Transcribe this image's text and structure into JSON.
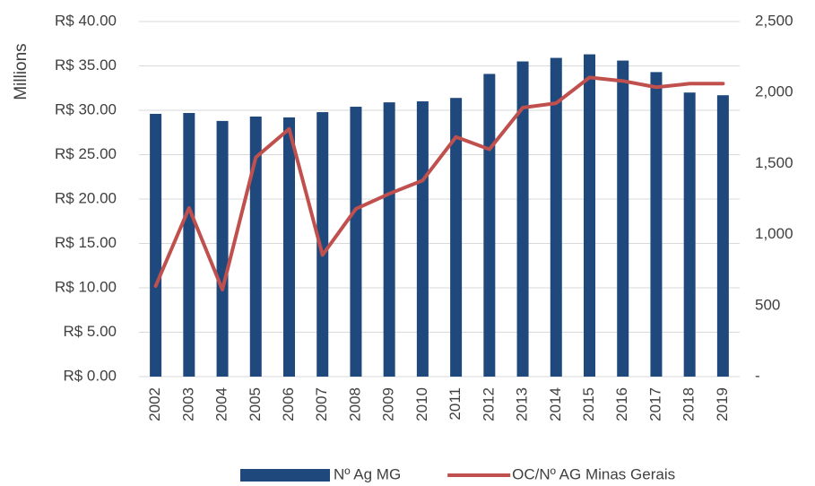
{
  "chart_data": {
    "type": "bar_line",
    "y_label": "Millions",
    "categories": [
      "2002",
      "2003",
      "2004",
      "2005",
      "2006",
      "2007",
      "2008",
      "2009",
      "2010",
      "2011",
      "2012",
      "2013",
      "2014",
      "2015",
      "2016",
      "2017",
      "2018",
      "2019"
    ],
    "series": [
      {
        "name": "Nº Ag MG",
        "type": "bar",
        "axis": "y2",
        "color": "#1f497d",
        "values": [
          1850,
          1856,
          1800,
          1831,
          1825,
          1862,
          1900,
          1931,
          1938,
          1962,
          2131,
          2219,
          2244,
          2269,
          2225,
          2144,
          2000,
          1981
        ]
      },
      {
        "name": "OC/Nº AG Minas Gerais",
        "type": "line",
        "axis": "y",
        "color": "#c0504d",
        "values": [
          10.2,
          19.0,
          9.8,
          24.7,
          27.9,
          13.7,
          18.9,
          20.6,
          22.1,
          27.0,
          25.6,
          30.3,
          30.8,
          33.7,
          33.3,
          32.6,
          33.0,
          33.0
        ]
      }
    ],
    "ylim": [
      0,
      40
    ],
    "yticks": [
      {
        "value": 0,
        "label": "R$ 0.00"
      },
      {
        "value": 5,
        "label": "R$ 5.00"
      },
      {
        "value": 10,
        "label": "R$ 10.00"
      },
      {
        "value": 15,
        "label": "R$ 15.00"
      },
      {
        "value": 20,
        "label": "R$ 20.00"
      },
      {
        "value": 25,
        "label": "R$ 25.00"
      },
      {
        "value": 30,
        "label": "R$ 30.00"
      },
      {
        "value": 35,
        "label": "R$ 35.00"
      },
      {
        "value": 40,
        "label": "R$ 40.00"
      }
    ],
    "y2lim": [
      0,
      2500
    ],
    "y2ticks": [
      {
        "value": 0,
        "label": "-"
      },
      500,
      {
        "value": 1000,
        "label": "1,000"
      },
      {
        "value": 1500,
        "label": "1,500"
      },
      {
        "value": 2000,
        "label": "2,000"
      },
      {
        "value": 2500,
        "label": "2,500"
      }
    ],
    "grid": true,
    "legend": "bottom"
  }
}
